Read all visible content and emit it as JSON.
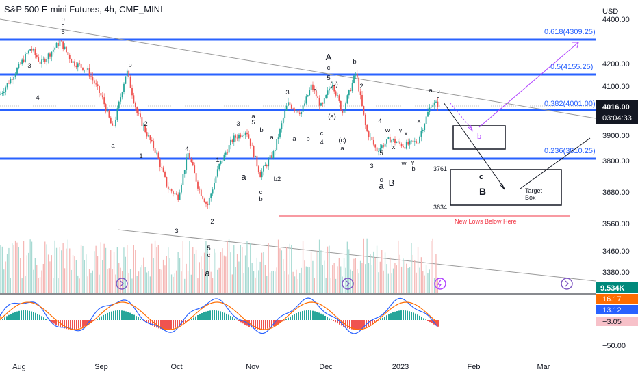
{
  "title": "S&P 500 E-mini Futures, 4h, CME_MINI",
  "currency": "USD",
  "colors": {
    "up": "#26a69a",
    "down": "#ef5350",
    "fib_line": "#2962ff",
    "purple": "#b042ff",
    "red_line": "#f23645",
    "price_tag": "#131722",
    "vol_tag": "#00897b",
    "osc_tag_orange": "#ff6d00",
    "osc_tag_blue": "#2962ff",
    "osc_tag_pink": "#f7c1c9"
  },
  "chart_data": {
    "type": "line",
    "ylim": [
      3380,
      4460
    ],
    "yticks": [
      "4400.00",
      "4200.00",
      "4100.00",
      "3900.00",
      "3800.00",
      "3680.00",
      "3560.00",
      "3460.00",
      "3380.00"
    ],
    "xticks": [
      "Aug",
      "Sep",
      "Oct",
      "Nov",
      "Dec",
      "2023",
      "Feb",
      "Mar"
    ],
    "price_series": {
      "name": "Price",
      "points": [
        [
          "Aug",
          4060
        ],
        [
          "Aug",
          4140
        ],
        [
          "Aug",
          4270
        ],
        [
          "Aug",
          4300
        ],
        [
          "Aug",
          4200
        ],
        [
          "Aug",
          4170
        ],
        [
          "Sep",
          4050
        ],
        [
          "Sep",
          3900
        ],
        [
          "Sep",
          4140
        ],
        [
          "Sep",
          4160
        ],
        [
          "Sep",
          3900
        ],
        [
          "Sep",
          3820
        ],
        [
          "Oct",
          3600
        ],
        [
          "Oct",
          3780
        ],
        [
          "Oct",
          3600
        ],
        [
          "Oct",
          3580
        ],
        [
          "Oct",
          3780
        ],
        [
          "Oct",
          3860
        ],
        [
          "Nov",
          3720
        ],
        [
          "Nov",
          3920
        ],
        [
          "Nov",
          3820
        ],
        [
          "Nov",
          4040
        ],
        [
          "Nov",
          4060
        ],
        [
          "Nov",
          4020
        ],
        [
          "Dec",
          4090
        ],
        [
          "Dec",
          3980
        ],
        [
          "Dec",
          4160
        ],
        [
          "Dec",
          3900
        ],
        [
          "Dec",
          3800
        ],
        [
          "Dec",
          3820
        ],
        [
          "2023",
          3870
        ],
        [
          "2023",
          3850
        ],
        [
          "2023",
          4000
        ],
        [
          "2023",
          4016
        ]
      ]
    },
    "horizontal_levels": [
      {
        "label": "0.618(4309.25)",
        "value": 4309.25
      },
      {
        "label": "0.5(4155.25)",
        "value": 4155.25
      },
      {
        "label": "0.382(4001.00)",
        "value": 4001.0
      },
      {
        "label": "0.236(3810.25)",
        "value": 3810.25
      }
    ],
    "annotations": {
      "current_price": "4016.00",
      "countdown": "03:04:33",
      "volume": "9.534K",
      "osc_values": [
        "16.17",
        "13.12",
        "−3.05"
      ],
      "osc_axis": "−50.00",
      "level_3761": "3761",
      "level_3634": "3634",
      "new_lows": "New Lows Below Here",
      "target_box": [
        "Target",
        "Box"
      ],
      "box_c": "c",
      "box_B": "B",
      "box_b": "b"
    },
    "wave_labels": [
      "b",
      "c",
      "5",
      "3",
      "4",
      "3",
      "b",
      "2",
      "a",
      "1",
      "4",
      "2",
      "3",
      "1",
      "2",
      "5",
      "c",
      "a",
      "4",
      "3",
      "a",
      "5",
      "b",
      "c",
      "b",
      "b2",
      "a",
      "a",
      "3",
      "A",
      "c",
      "5",
      "(b)",
      "3",
      "b",
      "(a)",
      "c",
      "4",
      "(c)",
      "a",
      "b",
      "2",
      "4",
      "w",
      "x",
      "y",
      "x",
      "3",
      "5",
      "c",
      "a",
      "B",
      "w",
      "y",
      "b",
      "x",
      "a",
      "b",
      "c",
      "c",
      "a"
    ],
    "grid": false,
    "legend": "none"
  }
}
